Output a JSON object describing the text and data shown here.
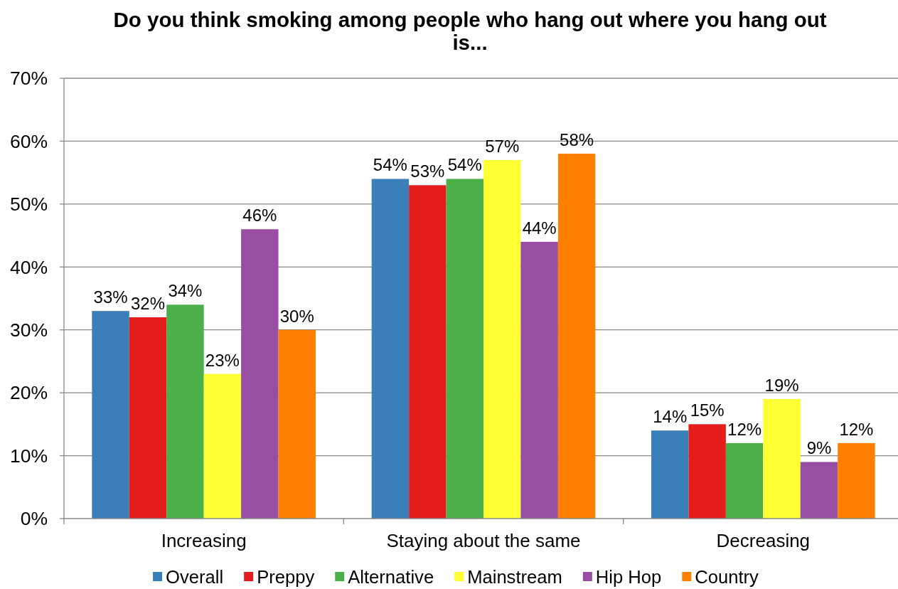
{
  "chart_data": {
    "type": "bar",
    "title": "Do you think smoking among people who hang out where you hang out is...",
    "categories": [
      "Increasing",
      "Staying about the same",
      "Decreasing"
    ],
    "series": [
      {
        "name": "Overall",
        "color": "#3a7fba",
        "values": [
          33,
          54,
          14
        ],
        "value_labels": [
          "33%",
          "54%",
          "14%"
        ]
      },
      {
        "name": "Preppy",
        "color": "#e41c1c",
        "values": [
          32,
          53,
          15
        ],
        "value_labels": [
          "32%",
          "53%",
          "15%"
        ]
      },
      {
        "name": "Alternative",
        "color": "#4daf4a",
        "values": [
          34,
          54,
          12
        ],
        "value_labels": [
          "34%",
          "54%",
          "12%"
        ]
      },
      {
        "name": "Mainstream",
        "color": "#ffff33",
        "values": [
          23,
          57,
          19
        ],
        "value_labels": [
          "23%",
          "57%",
          "19%"
        ]
      },
      {
        "name": "Hip Hop",
        "color": "#984ea3",
        "values": [
          46,
          44,
          9
        ],
        "value_labels": [
          "46%",
          "44%",
          "9%"
        ]
      },
      {
        "name": "Country",
        "color": "#ff7f00",
        "values": [
          30,
          58,
          12
        ],
        "value_labels": [
          "30%",
          "58%",
          "12%"
        ]
      }
    ],
    "ylim": [
      0,
      70
    ],
    "yticks": [
      {
        "value": 0,
        "label": "0%"
      },
      {
        "value": 10,
        "label": "10%"
      },
      {
        "value": 20,
        "label": "20%"
      },
      {
        "value": 30,
        "label": "30%"
      },
      {
        "value": 40,
        "label": "40%"
      },
      {
        "value": 50,
        "label": "50%"
      },
      {
        "value": 60,
        "label": "60%"
      },
      {
        "value": 70,
        "label": "70%"
      }
    ],
    "grid": "y",
    "legend": "bottom"
  }
}
